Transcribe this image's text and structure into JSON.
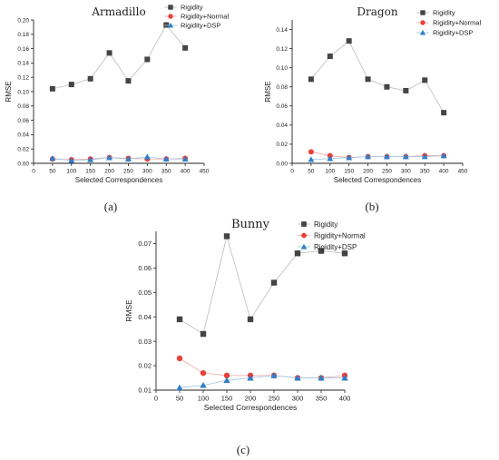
{
  "panel_labels": [
    "(a)",
    "(b)",
    "(c)"
  ],
  "chart_data": [
    {
      "type": "line",
      "title": "Armadillo",
      "xlabel": "Selected Correspondences",
      "ylabel": "RMSE",
      "xlim": [
        0,
        450
      ],
      "ylim": [
        0,
        0.2
      ],
      "xticks": [
        0,
        50,
        100,
        150,
        200,
        250,
        300,
        350,
        400,
        450
      ],
      "yticks": [
        0.0,
        0.02,
        0.04,
        0.06,
        0.08,
        0.1,
        0.12,
        0.14,
        0.16,
        0.18,
        0.2
      ],
      "ytick_labels": [
        "0.00",
        "0.02",
        "0.04",
        "0.06",
        "0.08",
        "0.10",
        "0.12",
        "0.14",
        "0.16",
        "0.18",
        "0.20"
      ],
      "legend": "top-right",
      "grid": false,
      "x": [
        50,
        100,
        150,
        200,
        250,
        300,
        350,
        400
      ],
      "series": [
        {
          "name": "Rigidity",
          "color": "#444444",
          "marker": "square",
          "values": [
            0.104,
            0.11,
            0.118,
            0.154,
            0.115,
            0.145,
            0.193,
            0.161
          ]
        },
        {
          "name": "Rigidity+Normal",
          "color": "#e8403a",
          "marker": "circle",
          "values": [
            0.006,
            0.005,
            0.006,
            0.008,
            0.007,
            0.006,
            0.006,
            0.007
          ]
        },
        {
          "name": "Rigidity+DSP",
          "color": "#2f7fc8",
          "marker": "triangle",
          "values": [
            0.007,
            0.004,
            0.005,
            0.008,
            0.006,
            0.009,
            0.006,
            0.006
          ]
        }
      ]
    },
    {
      "type": "line",
      "title": "Dragon",
      "xlabel": "Selected Correspondences",
      "ylabel": "RMSE",
      "xlim": [
        0,
        450
      ],
      "ylim": [
        0,
        0.15
      ],
      "xticks": [
        0,
        50,
        100,
        150,
        200,
        250,
        300,
        350,
        400,
        450
      ],
      "yticks": [
        0.0,
        0.02,
        0.04,
        0.06,
        0.08,
        0.1,
        0.12,
        0.14
      ],
      "ytick_labels": [
        "0.00",
        "0.02",
        "0.04",
        "0.06",
        "0.08",
        "0.10",
        "0.12",
        "0.14"
      ],
      "legend": "top-right",
      "grid": false,
      "x": [
        50,
        100,
        150,
        200,
        250,
        300,
        350,
        400
      ],
      "series": [
        {
          "name": "Rigidity",
          "color": "#444444",
          "marker": "square",
          "values": [
            0.088,
            0.112,
            0.128,
            0.088,
            0.08,
            0.076,
            0.087,
            0.053
          ]
        },
        {
          "name": "Rigidity+Normal",
          "color": "#e8403a",
          "marker": "circle",
          "values": [
            0.012,
            0.008,
            0.006,
            0.007,
            0.007,
            0.007,
            0.008,
            0.008
          ]
        },
        {
          "name": "Rigidity+DSP",
          "color": "#2f7fc8",
          "marker": "triangle",
          "values": [
            0.004,
            0.005,
            0.006,
            0.007,
            0.007,
            0.007,
            0.007,
            0.008
          ]
        }
      ]
    },
    {
      "type": "line",
      "title": "Bunny",
      "xlabel": "Selected Correspondences",
      "ylabel": "RMSE",
      "xlim": [
        0,
        400
      ],
      "ylim": [
        0.01,
        0.075
      ],
      "xticks": [
        0,
        50,
        100,
        150,
        200,
        250,
        300,
        350,
        400
      ],
      "yticks": [
        0.01,
        0.02,
        0.03,
        0.04,
        0.05,
        0.06,
        0.07
      ],
      "ytick_labels": [
        "0.01",
        "0.02",
        "0.03",
        "0.04",
        "0.05",
        "0.06",
        "0.07"
      ],
      "legend": "top-right",
      "grid": false,
      "x": [
        50,
        100,
        150,
        200,
        250,
        300,
        350,
        400
      ],
      "series": [
        {
          "name": "Rigidity",
          "color": "#444444",
          "marker": "square",
          "values": [
            0.039,
            0.033,
            0.073,
            0.039,
            0.054,
            0.066,
            0.067,
            0.066
          ]
        },
        {
          "name": "Rigidity+Normal",
          "color": "#e8403a",
          "marker": "circle",
          "values": [
            0.023,
            0.017,
            0.016,
            0.016,
            0.016,
            0.015,
            0.015,
            0.016
          ]
        },
        {
          "name": "Rigidity+DSP",
          "color": "#2f7fc8",
          "marker": "triangle",
          "values": [
            0.011,
            0.012,
            0.014,
            0.015,
            0.016,
            0.015,
            0.015,
            0.015
          ]
        }
      ]
    }
  ]
}
